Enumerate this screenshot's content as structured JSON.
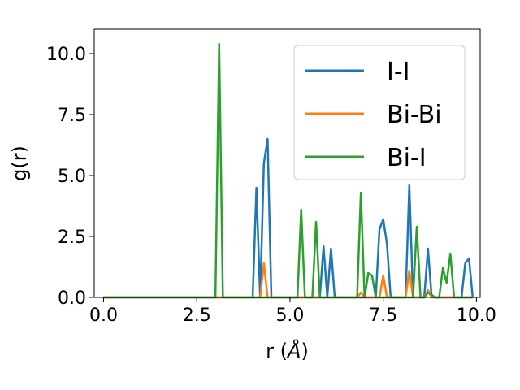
{
  "chart_data": {
    "type": "line",
    "title": "",
    "xlabel_prefix": "r (",
    "xlabel_unit": "Å",
    "xlabel_suffix": ")",
    "ylabel": "g(r)",
    "xlim": [
      -0.25,
      10.1
    ],
    "ylim": [
      0,
      11.0
    ],
    "xticks": [
      0.0,
      2.5,
      5.0,
      7.5,
      10.0
    ],
    "xtick_labels": [
      "0.0",
      "2.5",
      "5.0",
      "7.5",
      "10.0"
    ],
    "yticks": [
      0.0,
      2.5,
      5.0,
      7.5,
      10.0
    ],
    "ytick_labels": [
      "0.0",
      "2.5",
      "5.0",
      "7.5",
      "10.0"
    ],
    "grid": false,
    "legend_position": "top-right",
    "series": [
      {
        "name": "I-I",
        "color": "#1f77b4",
        "x": [
          0.0,
          4.0,
          4.1,
          4.2,
          4.3,
          4.4,
          4.5,
          5.8,
          5.9,
          6.0,
          6.1,
          6.2,
          6.3,
          7.3,
          7.4,
          7.5,
          7.6,
          7.7,
          8.1,
          8.2,
          8.3,
          8.6,
          8.7,
          8.8,
          9.6,
          9.7,
          9.8,
          9.9
        ],
        "y": [
          0.0,
          0.0,
          4.5,
          0.0,
          5.5,
          6.5,
          0.0,
          0.0,
          2.1,
          0.0,
          2.0,
          0.0,
          0.0,
          0.0,
          2.8,
          3.2,
          2.2,
          0.0,
          0.0,
          4.6,
          0.0,
          0.0,
          2.0,
          0.0,
          0.0,
          1.4,
          1.6,
          0.0
        ]
      },
      {
        "name": "Bi-Bi",
        "color": "#ff7f0e",
        "x": [
          0.0,
          4.2,
          4.3,
          4.4,
          6.8,
          6.9,
          7.0,
          7.4,
          7.5,
          7.6,
          8.1,
          8.2,
          8.3,
          8.6,
          8.7,
          8.8,
          9.9
        ],
        "y": [
          0.0,
          0.0,
          1.4,
          0.0,
          0.0,
          0.2,
          0.0,
          0.0,
          0.9,
          0.0,
          0.0,
          1.1,
          0.0,
          0.0,
          0.3,
          0.0,
          0.0
        ]
      },
      {
        "name": "Bi-I",
        "color": "#2ca02c",
        "x": [
          0.0,
          3.0,
          3.1,
          3.2,
          5.2,
          5.3,
          5.4,
          5.6,
          5.7,
          5.8,
          6.8,
          6.9,
          7.0,
          7.1,
          7.2,
          7.3,
          7.4,
          8.3,
          8.4,
          8.5,
          8.6,
          8.7,
          8.8,
          8.9,
          9.0,
          9.1,
          9.2,
          9.3,
          9.4,
          9.9
        ],
        "y": [
          0.0,
          0.0,
          10.4,
          0.0,
          0.0,
          3.6,
          0.0,
          0.0,
          3.1,
          0.0,
          0.0,
          4.3,
          0.0,
          1.0,
          0.9,
          0.0,
          0.0,
          0.0,
          2.9,
          0.0,
          0.0,
          0.2,
          0.1,
          0.0,
          0.0,
          1.2,
          0.6,
          1.8,
          0.0,
          0.0
        ]
      }
    ]
  }
}
